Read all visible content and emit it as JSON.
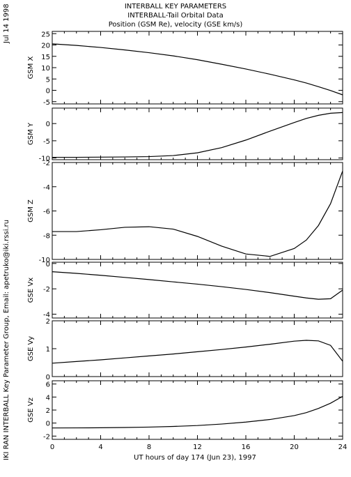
{
  "header": {
    "title1": "INTERBALL KEY PARAMETERS",
    "title2": "INTERBALL-Tail Orbital Data",
    "title3": "Position (GSM Re), velocity (GSE km/s)"
  },
  "side": {
    "date": "Jul 14 1998",
    "credit": "IKI RAN INTERBALL Key Parameter Group, Email: apetruko@iki.rssi.ru"
  },
  "chart_data": {
    "type": "line",
    "xlabel": "UT hours of day 174 (Jun 23), 1997",
    "xlim": [
      0,
      24
    ],
    "xticks": [
      0,
      4,
      8,
      12,
      16,
      20,
      24
    ],
    "x": [
      0,
      2,
      4,
      6,
      8,
      10,
      12,
      14,
      16,
      18,
      20,
      21,
      22,
      23,
      24
    ],
    "panels": [
      {
        "ylabel": "GSM X",
        "ylim": [
          -6,
          26
        ],
        "yticks": [
          -5,
          0,
          5,
          10,
          15,
          20,
          25
        ],
        "values": [
          20.5,
          19.8,
          18.9,
          17.8,
          16.6,
          15.2,
          13.5,
          11.5,
          9.4,
          7.1,
          4.6,
          3.2,
          1.6,
          -0.1,
          -2.0
        ]
      },
      {
        "ylabel": "GSM Y",
        "ylim": [
          -10.5,
          4.5
        ],
        "yticks": [
          -10,
          -5,
          0
        ],
        "values": [
          -9.8,
          -9.8,
          -9.75,
          -9.7,
          -9.6,
          -9.3,
          -8.5,
          -7.0,
          -4.8,
          -2.2,
          0.3,
          1.5,
          2.4,
          3.0,
          3.2
        ]
      },
      {
        "ylabel": "GSM Z",
        "ylim": [
          -10,
          -2
        ],
        "yticks": [
          -10,
          -8,
          -6,
          -4,
          -2
        ],
        "values": [
          -7.7,
          -7.7,
          -7.55,
          -7.35,
          -7.3,
          -7.5,
          -8.1,
          -8.9,
          -9.55,
          -9.75,
          -9.1,
          -8.4,
          -7.2,
          -5.4,
          -2.7
        ]
      },
      {
        "ylabel": "GSE Vx",
        "ylim": [
          -4.3,
          0.1
        ],
        "yticks": [
          -4,
          -2,
          0
        ],
        "values": [
          -0.65,
          -0.78,
          -0.93,
          -1.1,
          -1.27,
          -1.45,
          -1.63,
          -1.83,
          -2.05,
          -2.3,
          -2.58,
          -2.72,
          -2.82,
          -2.78,
          -2.1
        ]
      },
      {
        "ylabel": "GSE Vy",
        "ylim": [
          0,
          2
        ],
        "yticks": [
          0,
          1,
          2
        ],
        "values": [
          0.48,
          0.54,
          0.6,
          0.67,
          0.74,
          0.81,
          0.89,
          0.97,
          1.06,
          1.16,
          1.27,
          1.3,
          1.28,
          1.12,
          0.55
        ]
      },
      {
        "ylabel": "GSE Vz",
        "ylim": [
          -2.5,
          6.5
        ],
        "yticks": [
          -2,
          0,
          2,
          4,
          6
        ],
        "values": [
          -0.75,
          -0.74,
          -0.72,
          -0.68,
          -0.62,
          -0.52,
          -0.38,
          -0.15,
          0.15,
          0.55,
          1.15,
          1.6,
          2.25,
          3.05,
          4.1
        ]
      }
    ]
  }
}
